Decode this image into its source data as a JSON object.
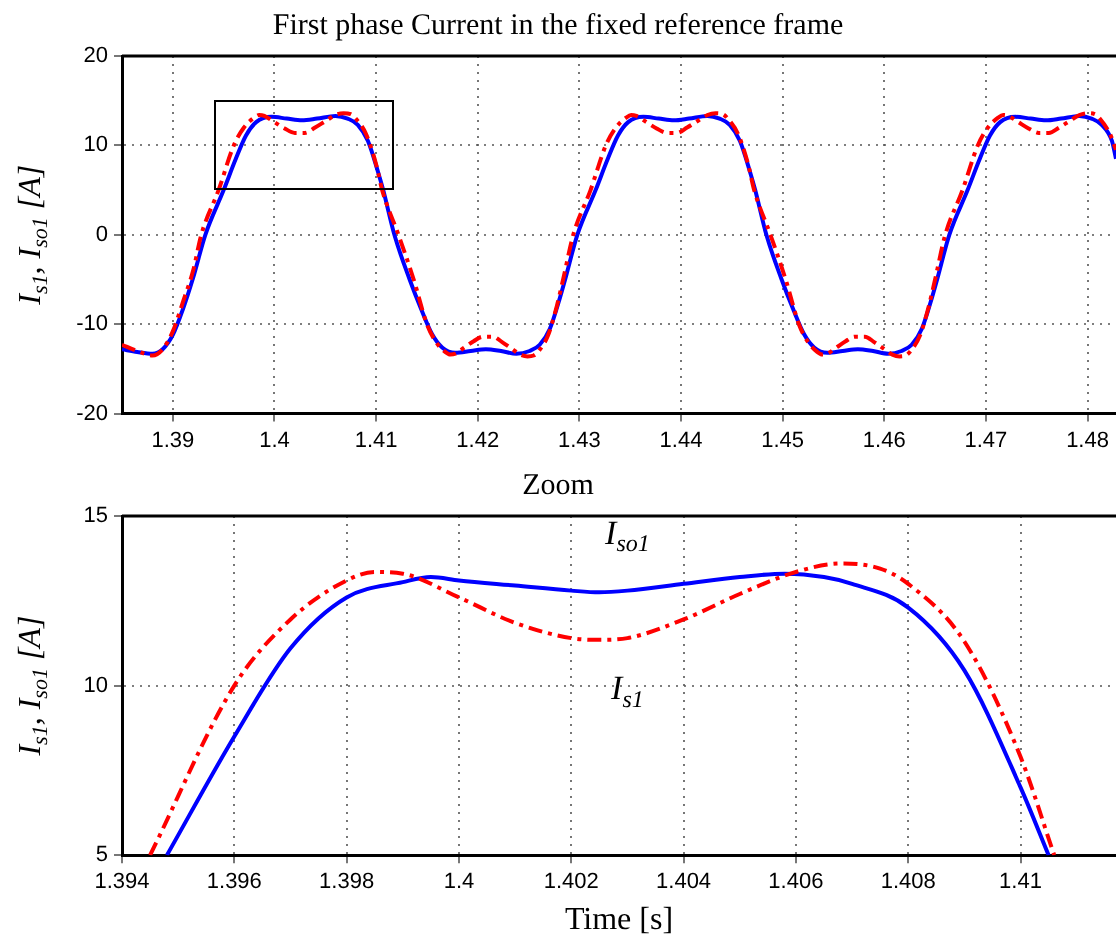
{
  "chart_data": [
    {
      "type": "line",
      "title": "First phase Current in the fixed reference frame",
      "ylabel": "I$_{s1}$, I$_{so1}$ [A]",
      "xlim": [
        1.385,
        1.4828
      ],
      "ylim": [
        -20,
        20
      ],
      "xticks": [
        1.39,
        1.4,
        1.41,
        1.42,
        1.43,
        1.44,
        1.45,
        1.46,
        1.47,
        1.48
      ],
      "yticks": [
        -20,
        -10,
        0,
        10,
        20
      ],
      "grid": true,
      "series": [
        {
          "color": "#ff0000",
          "line_style": "dashed",
          "x": [
            1.385,
            1.3865,
            1.388,
            1.389,
            1.39,
            1.391,
            1.392,
            1.3928,
            1.3945,
            1.396,
            1.397,
            1.398,
            1.3985,
            1.399,
            1.4,
            1.401,
            1.402,
            1.4025,
            1.403,
            1.404,
            1.405,
            1.406,
            1.4068,
            1.4075,
            1.408,
            1.409,
            1.41,
            1.4106,
            1.4122,
            1.4137,
            1.415,
            1.4159,
            1.4168,
            1.4173,
            1.4178,
            1.4187,
            1.4196,
            1.4205,
            1.421,
            1.4215,
            1.4224,
            1.4233,
            1.4242,
            1.4249,
            1.4255,
            1.426,
            1.4269,
            1.4278,
            1.4284,
            1.4294,
            1.4311,
            1.4326,
            1.4336,
            1.4346,
            1.4351,
            1.4356,
            1.4366,
            1.4376,
            1.4386,
            1.4391,
            1.4396,
            1.4406,
            1.4416,
            1.4426,
            1.4434,
            1.4441,
            1.4446,
            1.4456,
            1.4466,
            1.4472,
            1.4488,
            1.4503,
            1.4516,
            1.4525,
            1.4534,
            1.4539,
            1.4544,
            1.4553,
            1.4562,
            1.4571,
            1.4576,
            1.4581,
            1.459,
            1.4599,
            1.4608,
            1.4615,
            1.4621,
            1.4626,
            1.4635,
            1.4644,
            1.465,
            1.466,
            1.4677,
            1.4692,
            1.4702,
            1.4712,
            1.4717,
            1.4722,
            1.4732,
            1.4742,
            1.4752,
            1.4757,
            1.4762,
            1.4772,
            1.4782,
            1.4792,
            1.48,
            1.4807,
            1.4812,
            1.4822,
            1.4828
          ],
          "values": [
            -12.3,
            -13,
            -13.5,
            -12.8,
            -10.8,
            -7.5,
            -4,
            0,
            5,
            10,
            12,
            13.1,
            13.4,
            13.3,
            12.6,
            11.9,
            11.4,
            11.4,
            11.4,
            12,
            12.7,
            13.4,
            13.6,
            13.5,
            13,
            11.3,
            7.9,
            5,
            0,
            -5,
            -10,
            -12,
            -13.1,
            -13.4,
            -13.3,
            -12.6,
            -11.9,
            -11.4,
            -11.4,
            -11.4,
            -12,
            -12.7,
            -13.4,
            -13.6,
            -13.5,
            -13,
            -11.3,
            -7.9,
            -5,
            0,
            5,
            10,
            12,
            13.1,
            13.4,
            13.3,
            12.6,
            11.9,
            11.4,
            11.4,
            11.4,
            12,
            12.7,
            13.4,
            13.6,
            13.5,
            13,
            11.3,
            7.9,
            5,
            0,
            -5,
            -10,
            -12,
            -13.1,
            -13.4,
            -13.3,
            -12.6,
            -11.9,
            -11.4,
            -11.4,
            -11.4,
            -12,
            -12.7,
            -13.4,
            -13.6,
            -13.5,
            -13,
            -11.3,
            -7.9,
            -5,
            0,
            5,
            10,
            12,
            13.1,
            13.4,
            13.3,
            12.6,
            11.9,
            11.4,
            11.4,
            11.4,
            12,
            12.7,
            13.4,
            13.6,
            13.5,
            13,
            11.3,
            9.5
          ]
        },
        {
          "color": "#0000ff",
          "line_style": "solid",
          "x": [
            1.385,
            1.3865,
            1.388,
            1.389,
            1.39,
            1.391,
            1.392,
            1.3932,
            1.395,
            1.3962,
            1.3972,
            1.3982,
            1.3997,
            1.4012,
            1.4027,
            1.4042,
            1.406,
            1.4072,
            1.4082,
            1.4092,
            1.4102,
            1.4107,
            1.4118,
            1.4133,
            1.4145,
            1.4155,
            1.4165,
            1.4178,
            1.4193,
            1.4208,
            1.4223,
            1.4238,
            1.4251,
            1.4261,
            1.4271,
            1.4281,
            1.4286,
            1.4298,
            1.4316,
            1.4328,
            1.4338,
            1.4348,
            1.4363,
            1.4378,
            1.4393,
            1.4408,
            1.4426,
            1.4438,
            1.4448,
            1.4458,
            1.4468,
            1.4473,
            1.4484,
            1.4499,
            1.4511,
            1.4521,
            1.4531,
            1.4544,
            1.4559,
            1.4574,
            1.4589,
            1.4604,
            1.4617,
            1.4627,
            1.4637,
            1.4647,
            1.4652,
            1.4664,
            1.4682,
            1.4694,
            1.4704,
            1.4714,
            1.4729,
            1.4744,
            1.4759,
            1.4774,
            1.4792,
            1.4804,
            1.4814,
            1.4824,
            1.4828
          ],
          "values": [
            -12.8,
            -13.1,
            -13.3,
            -12.8,
            -11.2,
            -8.3,
            -4.8,
            0,
            5,
            8.5,
            11.1,
            12.6,
            13.2,
            13,
            12.8,
            13,
            13.3,
            13,
            12.3,
            10.5,
            7,
            5,
            0,
            -5,
            -8.5,
            -11.1,
            -12.6,
            -13.2,
            -13,
            -12.8,
            -13,
            -13.3,
            -13,
            -12.3,
            -10.5,
            -7,
            -5,
            0,
            5,
            8.5,
            11.1,
            12.6,
            13.2,
            13,
            12.8,
            13,
            13.3,
            13,
            12.3,
            10.5,
            7,
            5,
            0,
            -5,
            -8.5,
            -11.1,
            -12.6,
            -13.2,
            -13,
            -12.8,
            -13,
            -13.3,
            -13,
            -12.3,
            -10.5,
            -7,
            -5,
            0,
            5,
            8.5,
            11.1,
            12.6,
            13.2,
            13,
            12.8,
            13,
            13.3,
            13,
            12.3,
            10.5,
            8.5
          ]
        }
      ]
    },
    {
      "type": "line",
      "title": "Zoom",
      "xlabel": "Time [s]",
      "ylabel": "I$_{s1}$, I$_{so1}$ [A]",
      "xlim": [
        1.394,
        1.4117
      ],
      "ylim": [
        5,
        15
      ],
      "xticks": [
        1.394,
        1.396,
        1.398,
        1.4,
        1.402,
        1.404,
        1.406,
        1.408,
        1.41
      ],
      "yticks": [
        5,
        10,
        15
      ],
      "grid": true,
      "series": [
        {
          "name": "I$_{s1}$",
          "color": "#ff0000",
          "line_style": "dashed",
          "x": [
            1.3945,
            1.396,
            1.397,
            1.398,
            1.3985,
            1.399,
            1.4,
            1.401,
            1.402,
            1.4025,
            1.403,
            1.404,
            1.405,
            1.406,
            1.4068,
            1.4075,
            1.408,
            1.409,
            1.41,
            1.4106
          ],
          "values": [
            5,
            10,
            11.95,
            13.1,
            13.35,
            13.3,
            12.6,
            11.85,
            11.4,
            11.35,
            11.4,
            11.95,
            12.7,
            13.35,
            13.6,
            13.45,
            13,
            11.3,
            7.9,
            5
          ]
        },
        {
          "name": "I$_{so1}$",
          "color": "#0000ff",
          "line_style": "solid",
          "x": [
            1.3948,
            1.396,
            1.397,
            1.398,
            1.399,
            1.3995,
            1.4,
            1.401,
            1.402,
            1.4025,
            1.403,
            1.404,
            1.405,
            1.4058,
            1.4065,
            1.407,
            1.408,
            1.409,
            1.41,
            1.4105
          ],
          "values": [
            5,
            8.5,
            11.1,
            12.6,
            13.05,
            13.2,
            13.1,
            12.95,
            12.8,
            12.75,
            12.8,
            13,
            13.2,
            13.3,
            13.2,
            13,
            12.3,
            10.45,
            7,
            5
          ]
        }
      ]
    }
  ]
}
